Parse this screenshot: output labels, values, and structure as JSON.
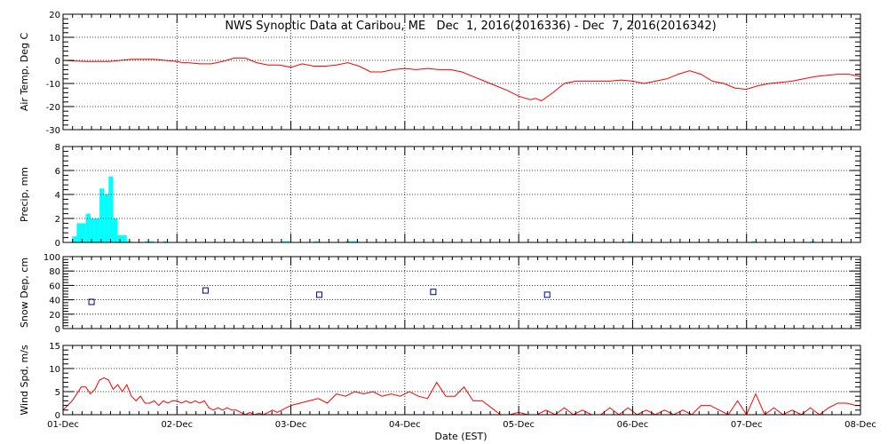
{
  "title": "NWS Synoptic Data at Caribou, ME   Dec  1, 2016(2016336) - Dec  7, 2016(2016342)",
  "x_label": "Date (EST)",
  "x_tick_labels": [
    "01-Dec",
    "02-Dec",
    "03-Dec",
    "04-Dec",
    "05-Dec",
    "06-Dec",
    "07-Dec",
    "08-Dec"
  ],
  "colors": {
    "temp": "#ff0000",
    "precip": "#00ffff",
    "snow": "#000080",
    "wind": "#ff0000",
    "axes": "#000000"
  },
  "chart_data": [
    {
      "type": "line",
      "ylabel": "Air Temp, Deg C",
      "ylim": [
        -30,
        20
      ],
      "yticks": [
        -30,
        -20,
        -10,
        0,
        10,
        20
      ],
      "xlim": [
        0,
        7
      ],
      "grid": true,
      "x": [
        0,
        0.2,
        0.4,
        0.6,
        0.8,
        1.0,
        1.05,
        1.1,
        1.2,
        1.3,
        1.4,
        1.5,
        1.6,
        1.7,
        1.8,
        1.9,
        2.0,
        2.1,
        2.2,
        2.3,
        2.4,
        2.5,
        2.6,
        2.7,
        2.8,
        2.9,
        3.0,
        3.1,
        3.2,
        3.3,
        3.4,
        3.5,
        3.6,
        3.7,
        3.8,
        3.9,
        4.0,
        4.1,
        4.15,
        4.2,
        4.3,
        4.4,
        4.5,
        4.6,
        4.7,
        4.8,
        4.9,
        5.0,
        5.1,
        5.2,
        5.3,
        5.4,
        5.5,
        5.6,
        5.7,
        5.8,
        5.9,
        6.0,
        6.1,
        6.2,
        6.3,
        6.4,
        6.5,
        6.6,
        6.7,
        6.8,
        6.9,
        7.0
      ],
      "series": [
        {
          "values": [
            0,
            -0.5,
            -0.5,
            0.5,
            0.5,
            -0.5,
            -1,
            -1,
            -1.5,
            -1.5,
            -0.5,
            1,
            1,
            -1,
            -2,
            -2,
            -3,
            -1.5,
            -2.5,
            -2.5,
            -2,
            -1,
            -2.5,
            -5,
            -5,
            -4,
            -3.5,
            -4,
            -3.5,
            -4,
            -4,
            -5,
            -7,
            -9,
            -11,
            -13,
            -15.5,
            -17,
            -16.5,
            -17.5,
            -14,
            -10,
            -9,
            -9,
            -9,
            -9,
            -8.5,
            -9,
            -10,
            -9,
            -8,
            -6,
            -4.5,
            -6,
            -9,
            -10,
            -12,
            -12.5,
            -11,
            -10,
            -9.5,
            -9,
            -8,
            -7,
            -6.5,
            -6,
            -6,
            -7
          ]
        }
      ]
    },
    {
      "type": "bar",
      "ylabel": "Precip, mm",
      "ylim": [
        0,
        8
      ],
      "yticks": [
        0,
        2,
        4,
        6,
        8
      ],
      "xlim": [
        0,
        7
      ],
      "grid": true,
      "bar_width": 0.04,
      "x": [
        0.08,
        0.12,
        0.16,
        0.2,
        0.24,
        0.28,
        0.32,
        0.36,
        0.4,
        0.44,
        0.48,
        0.52,
        0.56,
        0.72,
        0.76,
        0.88,
        1.92,
        1.96,
        2.2,
        2.48,
        2.52,
        2.56,
        4.96,
        6.04,
        6.56
      ],
      "values": [
        0.5,
        1.6,
        1.6,
        2.4,
        2.0,
        2.0,
        4.5,
        4.0,
        5.5,
        2.0,
        0.6,
        0.6,
        0.1,
        0.1,
        0.1,
        0.1,
        0.1,
        0.1,
        0.1,
        0.1,
        0.1,
        0.1,
        0.1,
        0.1,
        0.1
      ]
    },
    {
      "type": "scatter",
      "ylabel": "Snow Dep, cm",
      "ylim": [
        0,
        100
      ],
      "yticks": [
        0,
        20,
        40,
        60,
        80,
        100
      ],
      "xlim": [
        0,
        7
      ],
      "grid": true,
      "x": [
        0.25,
        1.25,
        2.25,
        3.25,
        4.25
      ],
      "values": [
        37,
        53,
        47,
        51,
        47
      ]
    },
    {
      "type": "line",
      "ylabel": "Wind Spd, m/s",
      "ylim": [
        0,
        15
      ],
      "yticks": [
        0,
        5,
        10,
        15
      ],
      "xlim": [
        0,
        7
      ],
      "grid": true,
      "x": [
        0,
        0.08,
        0.16,
        0.2,
        0.24,
        0.28,
        0.32,
        0.36,
        0.4,
        0.44,
        0.48,
        0.52,
        0.56,
        0.6,
        0.64,
        0.68,
        0.72,
        0.76,
        0.8,
        0.84,
        0.88,
        0.92,
        0.96,
        1.0,
        1.04,
        1.08,
        1.12,
        1.16,
        1.2,
        1.24,
        1.28,
        1.32,
        1.36,
        1.4,
        1.44,
        1.48,
        1.52,
        1.56,
        1.6,
        1.64,
        1.68,
        1.72,
        1.76,
        1.8,
        1.84,
        1.88,
        1.92,
        1.96,
        2.0,
        2.08,
        2.16,
        2.24,
        2.32,
        2.4,
        2.48,
        2.56,
        2.64,
        2.72,
        2.8,
        2.88,
        2.96,
        3.04,
        3.12,
        3.2,
        3.28,
        3.36,
        3.44,
        3.52,
        3.6,
        3.68,
        3.76,
        3.84,
        3.92,
        4.0,
        4.08,
        4.16,
        4.24,
        4.32,
        4.4,
        4.48,
        4.56,
        4.64,
        4.72,
        4.8,
        4.88,
        4.96,
        5.04,
        5.12,
        5.2,
        5.28,
        5.36,
        5.44,
        5.52,
        5.6,
        5.68,
        5.76,
        5.84,
        5.92,
        6.0,
        6.08,
        6.16,
        6.24,
        6.32,
        6.4,
        6.48,
        6.56,
        6.64,
        6.72,
        6.8,
        6.88,
        6.96,
        7.0
      ],
      "series": [
        {
          "values": [
            1,
            3,
            6,
            6,
            4.5,
            5.5,
            7.5,
            8,
            7.5,
            5.5,
            6.5,
            5,
            6.5,
            4,
            3,
            4,
            2.5,
            2.5,
            3,
            2,
            3,
            2.5,
            3,
            3,
            2.5,
            3,
            2.5,
            3,
            2.5,
            3,
            1.5,
            1,
            1.5,
            1,
            1.5,
            1,
            1,
            0.5,
            0,
            0.5,
            0,
            0.3,
            0,
            0.5,
            1,
            0.5,
            1,
            1.5,
            2,
            2.5,
            3,
            3.5,
            2.5,
            4.5,
            4,
            5,
            4.5,
            5,
            4,
            4.5,
            4,
            5,
            4,
            3.5,
            7,
            4,
            4,
            6,
            3,
            3,
            1.5,
            0,
            0,
            0.5,
            0,
            0,
            1,
            0,
            1.5,
            0,
            1,
            0,
            0,
            1.5,
            0,
            1.5,
            0,
            1,
            0,
            1,
            0,
            1,
            0,
            2,
            2,
            1,
            0,
            3,
            0,
            4.5,
            0,
            1.5,
            0,
            1,
            0,
            1.5,
            0,
            1.5,
            2.5,
            2.5,
            2,
            2
          ]
        }
      ]
    }
  ]
}
